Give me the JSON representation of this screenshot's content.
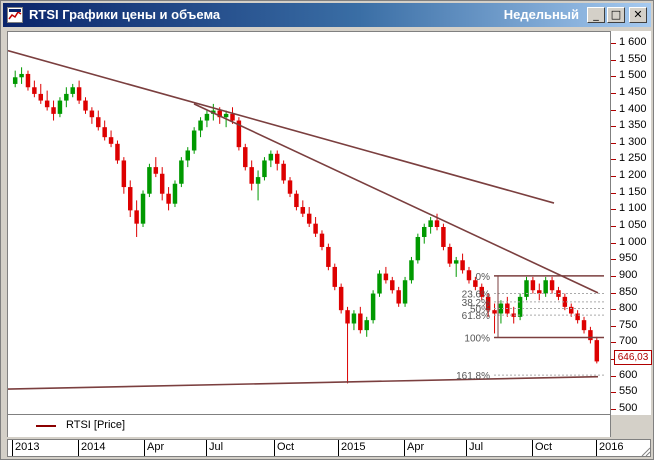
{
  "window": {
    "title": "RTSI Графики цены и объема",
    "period": "Недельный",
    "buttons": {
      "minimize": "_",
      "maximize": "□",
      "close": "✕"
    }
  },
  "legend": {
    "label": "RTSI [Price]",
    "color": "#8b0000"
  },
  "last_price_label": "646,03",
  "chart_data": {
    "type": "candlestick",
    "title": "",
    "series": [
      {
        "name": "RTSI [Price]"
      }
    ],
    "y_ticks": [
      "1 600",
      "1 550",
      "1 500",
      "1 450",
      "1 400",
      "1 350",
      "1 300",
      "1 250",
      "1 200",
      "1 150",
      "1 100",
      "1 050",
      "1 000",
      "950",
      "900",
      "850",
      "800",
      "750",
      "700",
      "650",
      "600",
      "550",
      "500"
    ],
    "ylim": [
      500,
      1600
    ],
    "x_ticks": [
      "2013",
      "2014",
      "Apr",
      "Jul",
      "Oct",
      "2015",
      "Apr",
      "Jul",
      "Oct",
      "2016"
    ],
    "fibonacci_labels": [
      "0%",
      "23.6%",
      "38.2%",
      "50%",
      "61.8%",
      "100%",
      "161.8%"
    ],
    "last_value": 646.03,
    "up_color": "#009900",
    "down_color": "#dd0000",
    "trendline_color": "#7b3f3f",
    "candles": [
      [
        1480,
        1520,
        1470,
        1500
      ],
      [
        1500,
        1530,
        1480,
        1510
      ],
      [
        1510,
        1520,
        1460,
        1470
      ],
      [
        1470,
        1490,
        1440,
        1450
      ],
      [
        1450,
        1480,
        1420,
        1430
      ],
      [
        1430,
        1460,
        1400,
        1410
      ],
      [
        1410,
        1430,
        1370,
        1390
      ],
      [
        1390,
        1440,
        1380,
        1430
      ],
      [
        1430,
        1470,
        1410,
        1450
      ],
      [
        1450,
        1480,
        1440,
        1470
      ],
      [
        1470,
        1490,
        1420,
        1430
      ],
      [
        1430,
        1440,
        1390,
        1400
      ],
      [
        1400,
        1410,
        1360,
        1380
      ],
      [
        1380,
        1400,
        1340,
        1350
      ],
      [
        1350,
        1370,
        1310,
        1320
      ],
      [
        1320,
        1340,
        1290,
        1300
      ],
      [
        1300,
        1310,
        1240,
        1250
      ],
      [
        1250,
        1260,
        1150,
        1170
      ],
      [
        1170,
        1190,
        1080,
        1100
      ],
      [
        1100,
        1130,
        1020,
        1060
      ],
      [
        1060,
        1160,
        1050,
        1150
      ],
      [
        1150,
        1240,
        1140,
        1230
      ],
      [
        1230,
        1260,
        1200,
        1210
      ],
      [
        1210,
        1230,
        1130,
        1150
      ],
      [
        1150,
        1170,
        1100,
        1120
      ],
      [
        1120,
        1190,
        1110,
        1180
      ],
      [
        1180,
        1260,
        1170,
        1250
      ],
      [
        1250,
        1290,
        1230,
        1280
      ],
      [
        1280,
        1350,
        1270,
        1340
      ],
      [
        1340,
        1380,
        1320,
        1370
      ],
      [
        1370,
        1400,
        1350,
        1390
      ],
      [
        1390,
        1420,
        1370,
        1400
      ],
      [
        1400,
        1410,
        1360,
        1380
      ],
      [
        1380,
        1400,
        1350,
        1390
      ],
      [
        1390,
        1410,
        1360,
        1370
      ],
      [
        1370,
        1380,
        1280,
        1290
      ],
      [
        1290,
        1300,
        1220,
        1230
      ],
      [
        1230,
        1250,
        1160,
        1180
      ],
      [
        1180,
        1220,
        1130,
        1200
      ],
      [
        1200,
        1260,
        1190,
        1250
      ],
      [
        1250,
        1280,
        1230,
        1270
      ],
      [
        1270,
        1280,
        1220,
        1240
      ],
      [
        1240,
        1250,
        1180,
        1190
      ],
      [
        1190,
        1200,
        1140,
        1150
      ],
      [
        1150,
        1160,
        1100,
        1110
      ],
      [
        1110,
        1130,
        1080,
        1090
      ],
      [
        1090,
        1110,
        1050,
        1060
      ],
      [
        1060,
        1080,
        1020,
        1030
      ],
      [
        1030,
        1040,
        980,
        990
      ],
      [
        990,
        1000,
        920,
        930
      ],
      [
        930,
        940,
        860,
        870
      ],
      [
        870,
        880,
        790,
        800
      ],
      [
        800,
        810,
        580,
        760
      ],
      [
        760,
        800,
        740,
        790
      ],
      [
        790,
        810,
        730,
        740
      ],
      [
        740,
        780,
        720,
        770
      ],
      [
        770,
        860,
        760,
        850
      ],
      [
        850,
        920,
        840,
        910
      ],
      [
        910,
        930,
        880,
        890
      ],
      [
        890,
        900,
        850,
        860
      ],
      [
        860,
        870,
        810,
        820
      ],
      [
        820,
        900,
        810,
        890
      ],
      [
        890,
        960,
        880,
        950
      ],
      [
        950,
        1030,
        940,
        1020
      ],
      [
        1020,
        1060,
        1000,
        1050
      ],
      [
        1050,
        1080,
        1030,
        1070
      ],
      [
        1070,
        1090,
        1040,
        1050
      ],
      [
        1050,
        1060,
        980,
        990
      ],
      [
        990,
        1000,
        930,
        940
      ],
      [
        940,
        960,
        900,
        950
      ],
      [
        950,
        970,
        910,
        920
      ],
      [
        920,
        930,
        880,
        890
      ],
      [
        890,
        900,
        860,
        870
      ],
      [
        870,
        880,
        830,
        840
      ],
      [
        840,
        850,
        780,
        800
      ],
      [
        800,
        820,
        730,
        790
      ],
      [
        790,
        830,
        760,
        820
      ],
      [
        820,
        840,
        780,
        790
      ],
      [
        790,
        810,
        760,
        780
      ],
      [
        780,
        850,
        770,
        840
      ],
      [
        840,
        900,
        830,
        890
      ],
      [
        890,
        900,
        850,
        860
      ],
      [
        860,
        880,
        830,
        850
      ],
      [
        850,
        900,
        840,
        890
      ],
      [
        890,
        900,
        850,
        860
      ],
      [
        860,
        870,
        830,
        840
      ],
      [
        840,
        850,
        800,
        810
      ],
      [
        810,
        820,
        780,
        790
      ],
      [
        790,
        800,
        760,
        770
      ],
      [
        770,
        780,
        730,
        740
      ],
      [
        740,
        750,
        700,
        710
      ],
      [
        710,
        720,
        640,
        646.03
      ]
    ]
  }
}
